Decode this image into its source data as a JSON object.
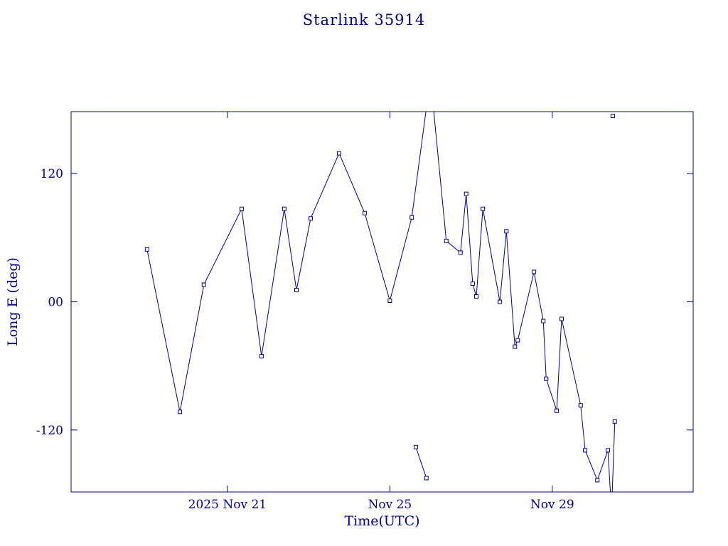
{
  "chart_data": {
    "type": "line",
    "title": "Starlink 35914",
    "xlabel": "Time(UTC)",
    "ylabel": "Long E (deg)",
    "accent_color": "#00008b",
    "x_axis": {
      "unit": "day of November 2025 (UTC)",
      "lim": [
        17.15,
        32.47
      ],
      "ticks": [
        {
          "v": 21,
          "label": "2025 Nov 21"
        },
        {
          "v": 25,
          "label": "Nov 25"
        },
        {
          "v": 29,
          "label": "Nov 29"
        }
      ]
    },
    "y_axis": {
      "unit": "degrees",
      "lim": [
        -178,
        178
      ],
      "ticks": [
        {
          "v": -120,
          "label": "-120"
        },
        {
          "v": 0,
          "label": "00"
        },
        {
          "v": 120,
          "label": "120"
        }
      ]
    },
    "segments": [
      {
        "name": "main-track",
        "points": [
          [
            19.02,
            49
          ],
          [
            19.83,
            -103
          ],
          [
            20.42,
            16
          ],
          [
            21.35,
            87
          ],
          [
            21.84,
            -51
          ],
          [
            22.4,
            87
          ],
          [
            22.7,
            11
          ],
          [
            23.05,
            78
          ],
          [
            23.75,
            139
          ],
          [
            24.38,
            83
          ],
          [
            25.0,
            1
          ],
          [
            25.54,
            79
          ],
          [
            26.0,
            210
          ],
          [
            26.39,
            57
          ],
          [
            26.74,
            46
          ],
          [
            26.88,
            101
          ],
          [
            27.04,
            17
          ],
          [
            27.13,
            5
          ],
          [
            27.29,
            87
          ],
          [
            27.71,
            0
          ],
          [
            27.87,
            66
          ],
          [
            28.08,
            -42
          ],
          [
            28.15,
            -36
          ],
          [
            28.55,
            28
          ],
          [
            28.78,
            -18
          ],
          [
            28.85,
            -72
          ],
          [
            29.11,
            -102
          ],
          [
            29.23,
            -16
          ],
          [
            29.7,
            -97
          ],
          [
            29.81,
            -139
          ],
          [
            30.11,
            -167
          ],
          [
            30.37,
            -139
          ],
          [
            30.45,
            -190
          ]
        ]
      },
      {
        "name": "wrapped-segment-low",
        "points": [
          [
            25.64,
            -136
          ],
          [
            25.9,
            -165
          ]
        ]
      },
      {
        "name": "wrapped-segment-end",
        "points": [
          [
            30.47,
            -186
          ],
          [
            30.54,
            -112
          ]
        ]
      }
    ],
    "isolated_points": [
      [
        30.49,
        174
      ]
    ],
    "legend": null,
    "grid": false
  }
}
